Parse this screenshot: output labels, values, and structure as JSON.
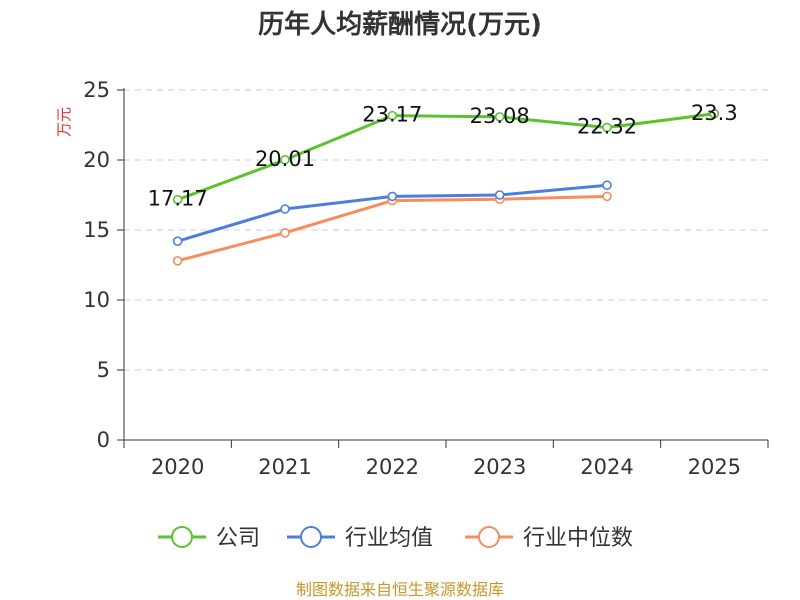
{
  "chart_data": {
    "type": "line",
    "title": "历年人均薪酬情况(万元)",
    "ylabel": "万元",
    "xlabel": "",
    "categories": [
      "2020",
      "2021",
      "2022",
      "2023",
      "2024",
      "2025"
    ],
    "ylim": [
      0,
      25
    ],
    "yticks": [
      0,
      5,
      10,
      15,
      20,
      25
    ],
    "grid": true,
    "legend_position": "bottom",
    "series": [
      {
        "name": "公司",
        "color": "#5cc22e",
        "values": [
          17.17,
          20.01,
          23.17,
          23.08,
          22.32,
          23.3
        ],
        "labels": [
          "17.17",
          "20.01",
          "23.17",
          "23.08",
          "22.32",
          "23.3"
        ]
      },
      {
        "name": "行业均值",
        "color": "#4e7fd8",
        "values": [
          14.2,
          16.5,
          17.4,
          17.5,
          18.2,
          null
        ]
      },
      {
        "name": "行业中位数",
        "color": "#f78c5c",
        "values": [
          12.8,
          14.8,
          17.1,
          17.2,
          17.4,
          null
        ]
      }
    ]
  },
  "source": "制图数据来自恒生聚源数据库",
  "colors": {
    "ylabel": "#e03030",
    "source": "#c8962a",
    "grid": "#cccccc",
    "axis": "#333333"
  }
}
